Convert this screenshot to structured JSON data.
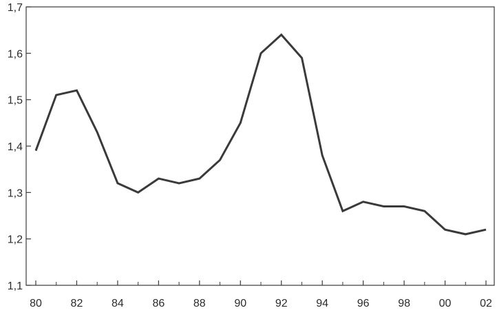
{
  "chart_data": {
    "type": "line",
    "title": "",
    "xlabel": "",
    "ylabel": "",
    "x": [
      1980,
      1981,
      1982,
      1983,
      1984,
      1985,
      1986,
      1987,
      1988,
      1989,
      1990,
      1991,
      1992,
      1993,
      1994,
      1995,
      1996,
      1997,
      1998,
      1999,
      2000,
      2001,
      2002
    ],
    "series": [
      {
        "values": [
          1.39,
          1.51,
          1.52,
          1.43,
          1.32,
          1.3,
          1.33,
          1.32,
          1.33,
          1.37,
          1.45,
          1.6,
          1.64,
          1.59,
          1.38,
          1.26,
          1.28,
          1.27,
          1.27,
          1.26,
          1.22,
          1.21,
          1.22
        ]
      }
    ],
    "xlim": [
      1980,
      2002
    ],
    "ylim": [
      1.1,
      1.7
    ],
    "x_ticks": [
      1980,
      1982,
      1984,
      1986,
      1988,
      1990,
      1992,
      1994,
      1996,
      1998,
      2000,
      2002
    ],
    "x_tick_labels": [
      "80",
      "82",
      "84",
      "86",
      "88",
      "90",
      "92",
      "94",
      "96",
      "98",
      "00",
      "02"
    ],
    "x_minor_ticks": [
      1981,
      1983,
      1985,
      1987,
      1989,
      1991,
      1993,
      1995,
      1997,
      1999,
      2001
    ],
    "y_ticks": [
      1.1,
      1.2,
      1.3,
      1.4,
      1.5,
      1.6,
      1.7
    ],
    "y_tick_labels": [
      "1,1",
      "1,2",
      "1,3",
      "1,4",
      "1,5",
      "1,6",
      "1,7"
    ],
    "grid": false,
    "legend": "none",
    "colors": {
      "line": "#3a3a3a",
      "axis": "#3a3a3a",
      "text": "#2b2b2b",
      "background": "#ffffff"
    }
  }
}
